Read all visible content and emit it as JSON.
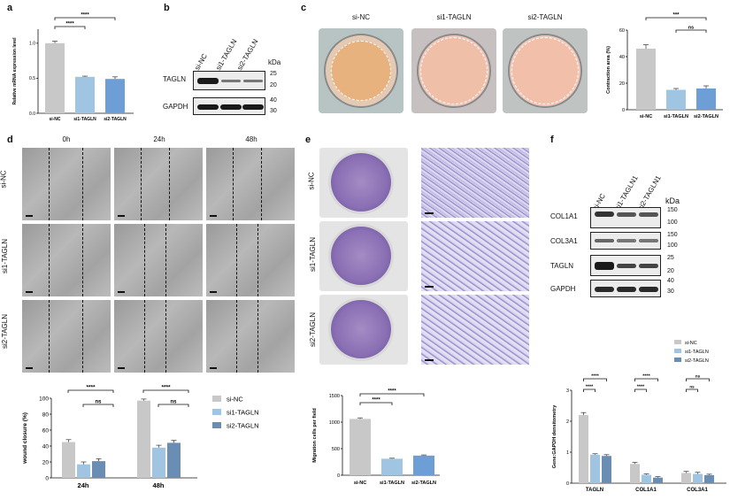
{
  "panels": {
    "a": "a",
    "b": "b",
    "c": "c",
    "d": "d",
    "e": "e",
    "f": "f"
  },
  "colors": {
    "gray": "#c8c8c8",
    "light_blue": "#9fc5e3",
    "blue": "#6e9ed6",
    "steel": "#6a8eb3",
    "lavender": "#9c8fd9"
  },
  "panel_a_chart": {
    "type": "bar",
    "ylabel": "Relative mRNA expression level",
    "categories": [
      "si-NC",
      "si1-TAGLN",
      "si2-TAGLN"
    ],
    "values": [
      1.0,
      0.52,
      0.49
    ],
    "errors": [
      0.03,
      0.01,
      0.03
    ],
    "ylim": [
      0,
      1.2
    ],
    "yticks": [
      "0.0",
      "0.5",
      "1.0"
    ],
    "sig": [
      "****",
      "****"
    ]
  },
  "panel_b": {
    "lanes": [
      "si-NC",
      "si1-TAGLN",
      "si2-TAGLN"
    ],
    "kda": "kDa",
    "rows": [
      {
        "label": "TAGLN",
        "markers": [
          "25",
          "20"
        ]
      },
      {
        "label": "GAPDH",
        "markers": [
          "40",
          "30"
        ]
      }
    ]
  },
  "panel_c": {
    "images": [
      "si-NC",
      "si1-TAGLN",
      "si2-TAGLN"
    ],
    "chart": {
      "type": "bar",
      "ylabel": "Contraction area (%)",
      "categories": [
        "si-NC",
        "si1-TAGLN",
        "si2-TAGLN"
      ],
      "values": [
        46,
        15,
        16
      ],
      "errors": [
        3,
        1,
        2
      ],
      "ylim": [
        0,
        60
      ],
      "yticks": [
        "0",
        "20",
        "40",
        "60"
      ],
      "sig": [
        "***",
        "ns"
      ]
    }
  },
  "panel_d": {
    "columns": [
      "0h",
      "24h",
      "48h"
    ],
    "rows": [
      "si-NC",
      "si1-TAGLN",
      "si2-TAGLN"
    ],
    "chart": {
      "type": "bar",
      "ylabel": "wound closure (%)",
      "categories": [
        "24h",
        "48h"
      ],
      "series": [
        {
          "name": "si-NC",
          "values": [
            45,
            97
          ],
          "errors": [
            3,
            2
          ]
        },
        {
          "name": "si1-TAGLN",
          "values": [
            17,
            38
          ],
          "errors": [
            3,
            3
          ]
        },
        {
          "name": "si2-TAGLN",
          "values": [
            21,
            44
          ],
          "errors": [
            3,
            3
          ]
        }
      ],
      "ylim": [
        0,
        100
      ],
      "yticks": [
        "0",
        "20",
        "40",
        "60",
        "80",
        "100"
      ],
      "sig": [
        "****",
        "ns",
        "****",
        "ns"
      ]
    }
  },
  "panel_e": {
    "rows": [
      "si-NC",
      "si1-TAGLN",
      "si2-TAGLN"
    ],
    "chart": {
      "type": "bar",
      "ylabel": "Migration cells per field",
      "categories": [
        "si-NC",
        "si1-TAGLN",
        "si2-TAGLN"
      ],
      "values": [
        1060,
        310,
        370
      ],
      "errors": [
        20,
        10,
        12
      ],
      "ylim": [
        0,
        1500
      ],
      "yticks": [
        "0",
        "500",
        "1000",
        "1500"
      ],
      "sig": [
        "****",
        "****"
      ]
    }
  },
  "panel_f": {
    "lanes": [
      "si-NC",
      "si1-TAGLN1",
      "si2-TAGLN1"
    ],
    "kda": "kDa",
    "rows": [
      {
        "label": "COL1A1",
        "markers": [
          "150",
          "100"
        ]
      },
      {
        "label": "COL3A1",
        "markers": [
          "150",
          "100"
        ]
      },
      {
        "label": "TAGLN",
        "markers": [
          "25",
          "20"
        ]
      },
      {
        "label": "GAPDH",
        "markers": [
          "40",
          "30"
        ]
      }
    ],
    "chart": {
      "type": "bar",
      "ylabel": "Gene:GAPDH densitometry",
      "categories": [
        "TAGLN",
        "COL1A1",
        "COL3A1"
      ],
      "series": [
        {
          "name": "si-NC",
          "values": [
            2.2,
            0.62,
            0.33
          ],
          "errors": [
            0.08,
            0.05,
            0.05
          ]
        },
        {
          "name": "si1-TAGLN",
          "values": [
            0.92,
            0.27,
            0.3
          ],
          "errors": [
            0.03,
            0.03,
            0.05
          ]
        },
        {
          "name": "si2-TAGLN",
          "values": [
            0.88,
            0.18,
            0.26
          ],
          "errors": [
            0.04,
            0.03,
            0.03
          ]
        }
      ],
      "ylim": [
        0,
        3
      ],
      "yticks": [
        "0",
        "1",
        "2",
        "3"
      ],
      "sig": [
        "****",
        "****",
        "****",
        "****",
        "ns",
        "ns"
      ]
    }
  }
}
